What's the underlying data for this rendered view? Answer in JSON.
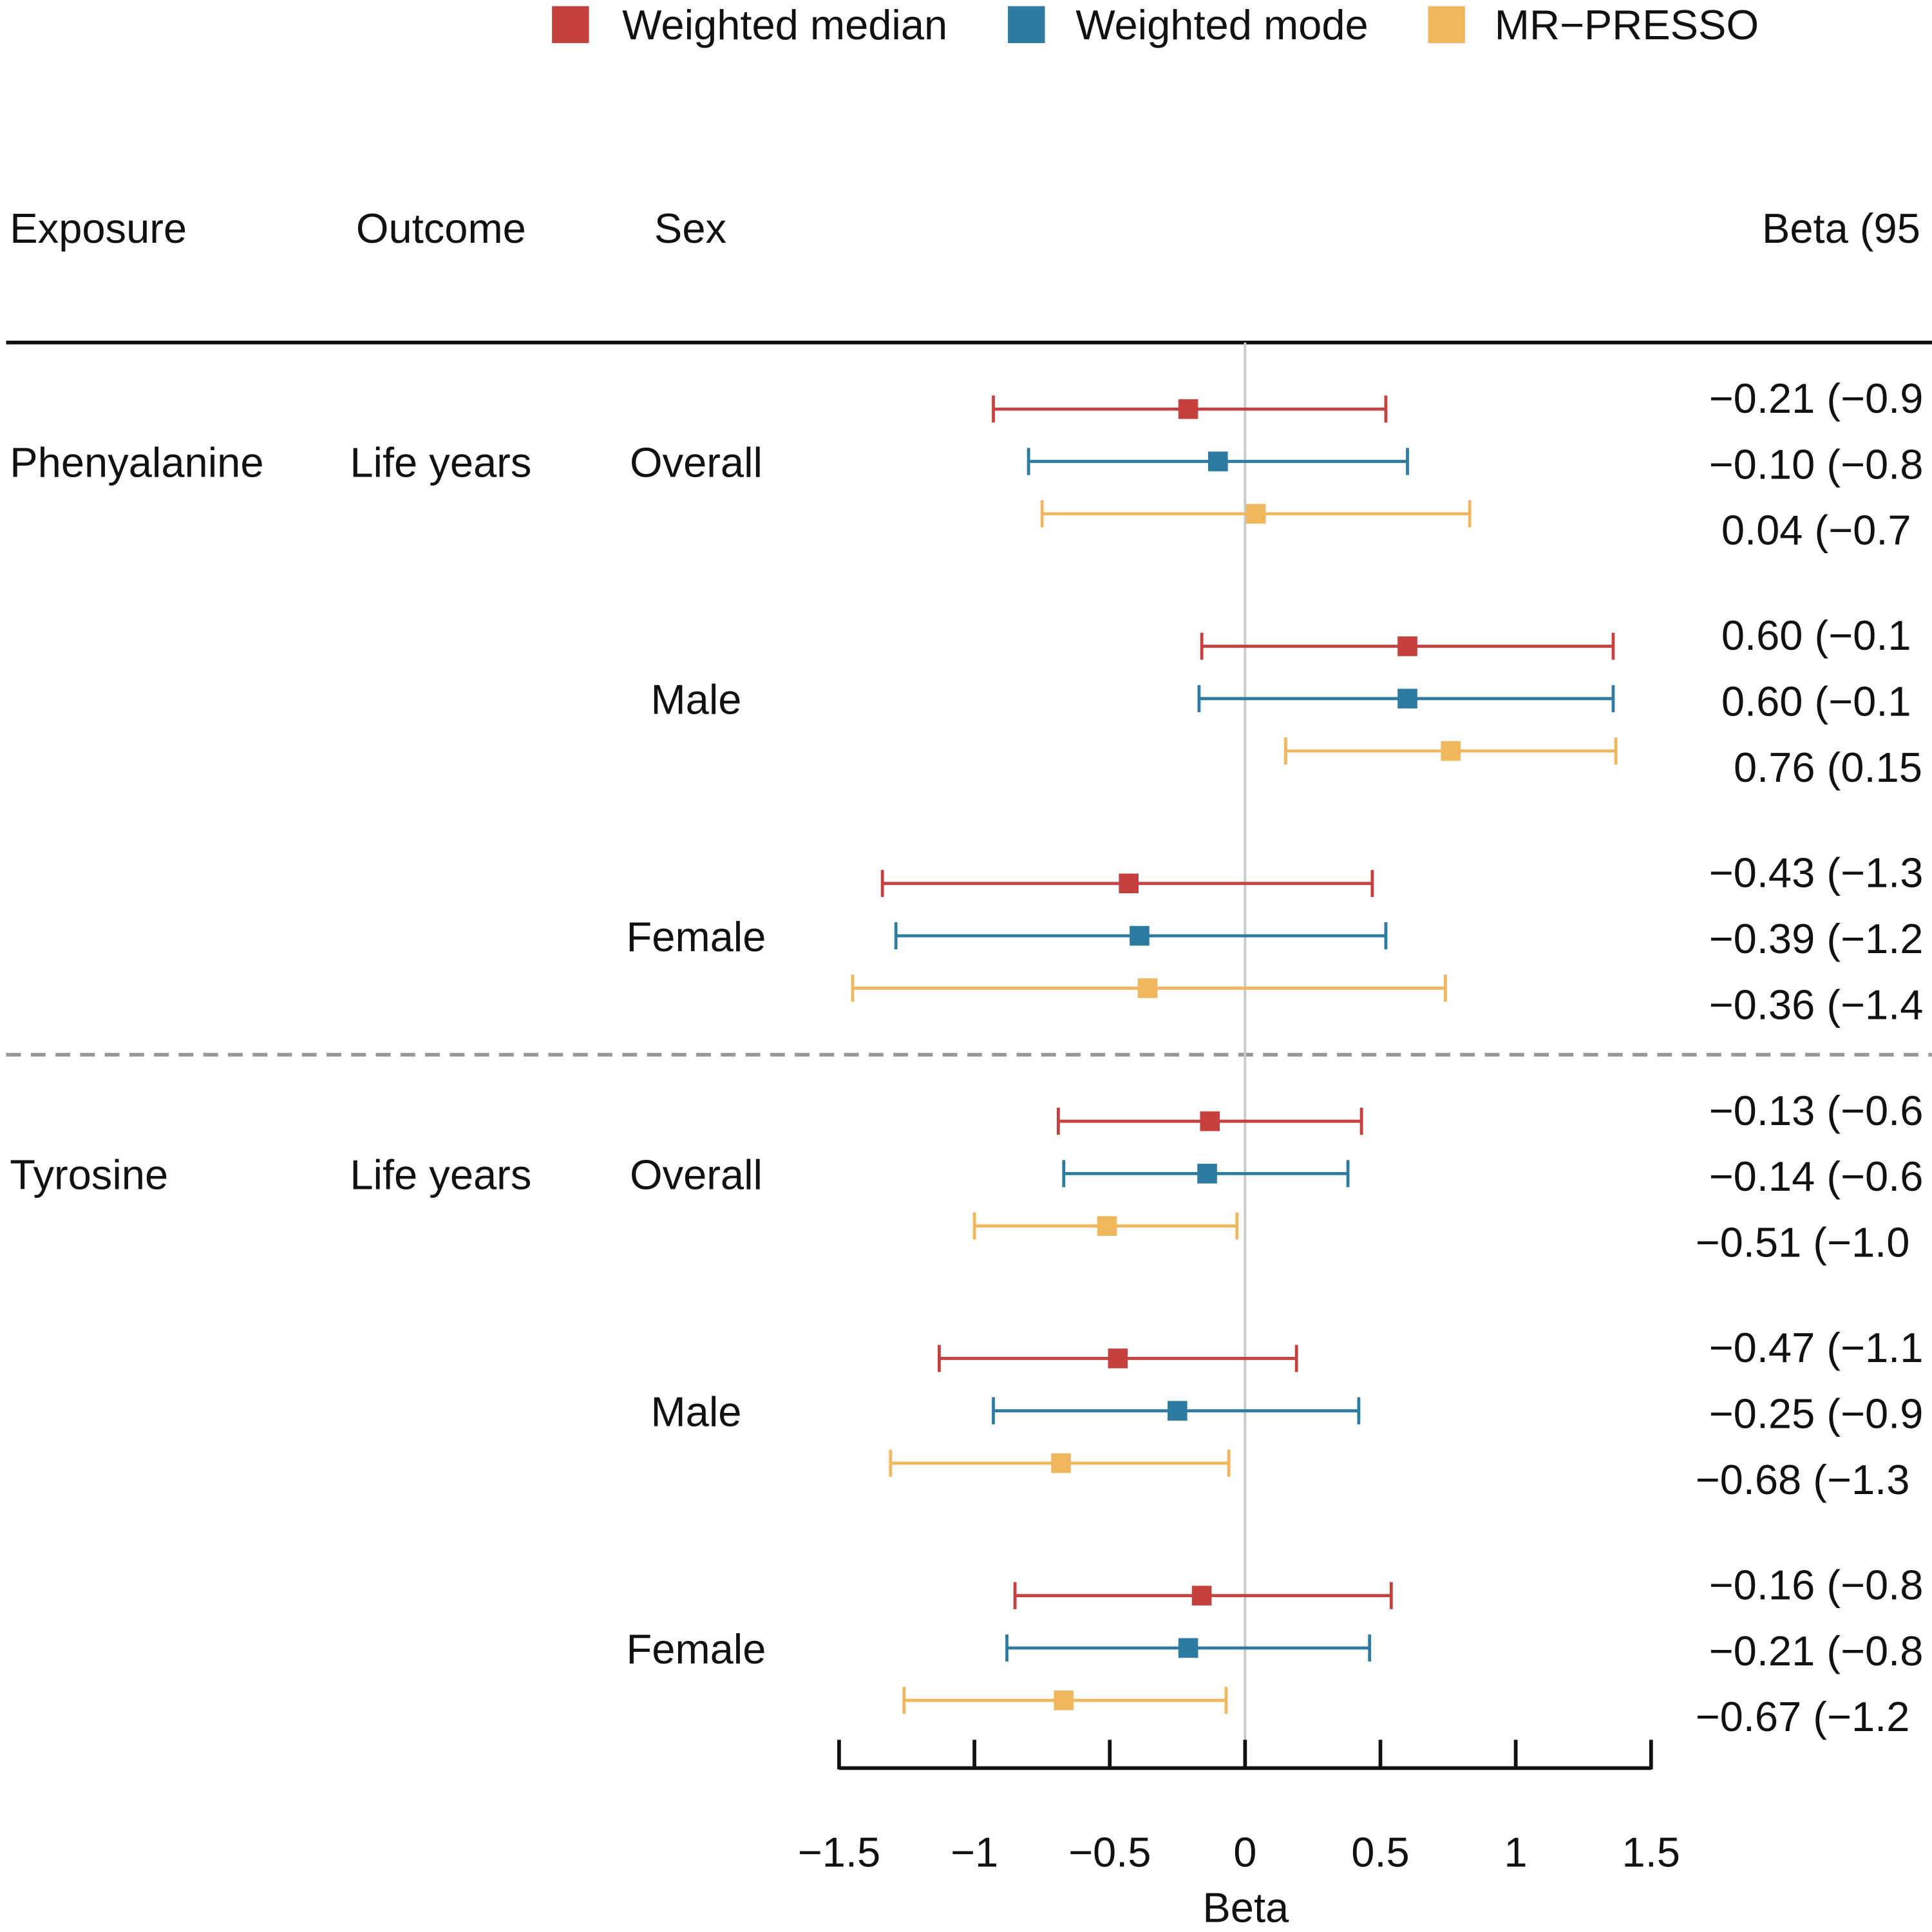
{
  "chart_data": {
    "type": "forest",
    "title": "",
    "xlabel": "Beta",
    "xlim": [
      -1.5,
      1.5
    ],
    "x_ticks": [
      "−1.5",
      "−1",
      "−0.5",
      "0",
      "0.5",
      "1",
      "1.5"
    ],
    "x_tick_values": [
      -1.5,
      -1,
      -0.5,
      0,
      0.5,
      1,
      1.5
    ],
    "reference_line": 0,
    "legend_position": "top",
    "legend": [
      {
        "name": "Weighted median",
        "color": "#c4413e"
      },
      {
        "name": "Weighted mode",
        "color": "#2e7ba1"
      },
      {
        "name": "MR−PRESSO",
        "color": "#f0b75e"
      }
    ],
    "columns": {
      "exposure": "Exposure",
      "outcome": "Outcome",
      "sex": "Sex",
      "beta": "Beta (95"
    },
    "groups": [
      {
        "exposure": "Phenyalanine",
        "outcome": "Life years",
        "subgroups": [
          {
            "sex": "Overall",
            "rows": [
              {
                "method": 0,
                "beta": -0.21,
                "lo": -0.93,
                "hi": 0.52,
                "label": "−0.21 (−0.9"
              },
              {
                "method": 1,
                "beta": -0.1,
                "lo": -0.8,
                "hi": 0.6,
                "label": "−0.10 (−0.8"
              },
              {
                "method": 2,
                "beta": 0.04,
                "lo": -0.75,
                "hi": 0.83,
                "label": "0.04 (−0.7"
              }
            ]
          },
          {
            "sex": "Male",
            "rows": [
              {
                "method": 0,
                "beta": 0.6,
                "lo": -0.16,
                "hi": 1.36,
                "label": "0.60 (−0.1"
              },
              {
                "method": 1,
                "beta": 0.6,
                "lo": -0.17,
                "hi": 1.36,
                "label": "0.60 (−0.1"
              },
              {
                "method": 2,
                "beta": 0.76,
                "lo": 0.15,
                "hi": 1.37,
                "label": "0.76 (0.15"
              }
            ]
          },
          {
            "sex": "Female",
            "rows": [
              {
                "method": 0,
                "beta": -0.43,
                "lo": -1.34,
                "hi": 0.47,
                "label": "−0.43 (−1.3"
              },
              {
                "method": 1,
                "beta": -0.39,
                "lo": -1.29,
                "hi": 0.52,
                "label": "−0.39 (−1.2"
              },
              {
                "method": 2,
                "beta": -0.36,
                "lo": -1.45,
                "hi": 0.74,
                "label": "−0.36 (−1.4"
              }
            ]
          }
        ]
      },
      {
        "exposure": "Tyrosine",
        "outcome": "Life years",
        "subgroups": [
          {
            "sex": "Overall",
            "rows": [
              {
                "method": 0,
                "beta": -0.13,
                "lo": -0.69,
                "hi": 0.43,
                "label": "−0.13 (−0.6"
              },
              {
                "method": 1,
                "beta": -0.14,
                "lo": -0.67,
                "hi": 0.38,
                "label": "−0.14 (−0.6"
              },
              {
                "method": 2,
                "beta": -0.51,
                "lo": -1.0,
                "hi": -0.03,
                "label": "−0.51 (−1.0"
              }
            ]
          },
          {
            "sex": "Male",
            "rows": [
              {
                "method": 0,
                "beta": -0.47,
                "lo": -1.13,
                "hi": 0.19,
                "label": "−0.47 (−1.1"
              },
              {
                "method": 1,
                "beta": -0.25,
                "lo": -0.93,
                "hi": 0.42,
                "label": "−0.25 (−0.9"
              },
              {
                "method": 2,
                "beta": -0.68,
                "lo": -1.31,
                "hi": -0.06,
                "label": "−0.68 (−1.3"
              }
            ]
          },
          {
            "sex": "Female",
            "rows": [
              {
                "method": 0,
                "beta": -0.16,
                "lo": -0.85,
                "hi": 0.54,
                "label": "−0.16 (−0.8"
              },
              {
                "method": 1,
                "beta": -0.21,
                "lo": -0.88,
                "hi": 0.46,
                "label": "−0.21 (−0.8"
              },
              {
                "method": 2,
                "beta": -0.67,
                "lo": -1.26,
                "hi": -0.07,
                "label": "−0.67 (−1.2"
              }
            ]
          }
        ]
      }
    ]
  }
}
